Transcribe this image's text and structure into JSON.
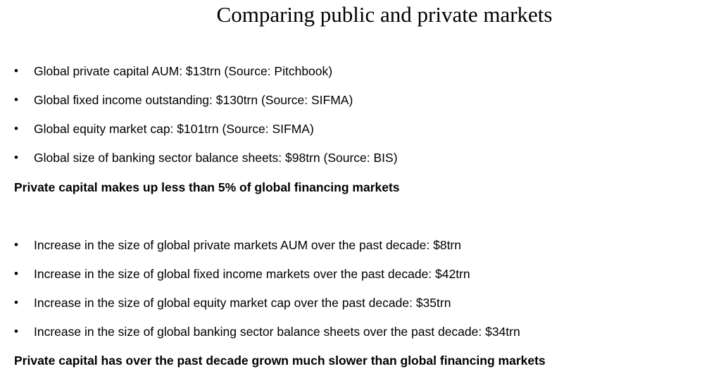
{
  "title": "Comparing public and private markets",
  "section1": {
    "bullets": [
      "Global private capital AUM: $13trn (Source: Pitchbook)",
      "Global fixed income outstanding: $130trn (Source: SIFMA)",
      "Global equity market cap: $101trn (Source: SIFMA)",
      "Global size of banking sector balance sheets: $98trn (Source: BIS)"
    ],
    "conclusion": "Private capital makes up less than 5% of global financing markets"
  },
  "section2": {
    "bullets": [
      "Increase in the size of global private markets AUM over the past decade: $8trn",
      "Increase in the size of global fixed income markets over the past decade: $42trn",
      "Increase in the size of global equity market cap over the past decade: $35trn",
      "Increase in the size of global banking sector balance sheets over the past decade: $34trn"
    ],
    "conclusion": "Private capital has over the past decade grown much slower than global financing markets"
  },
  "bullet_symbol": "•"
}
